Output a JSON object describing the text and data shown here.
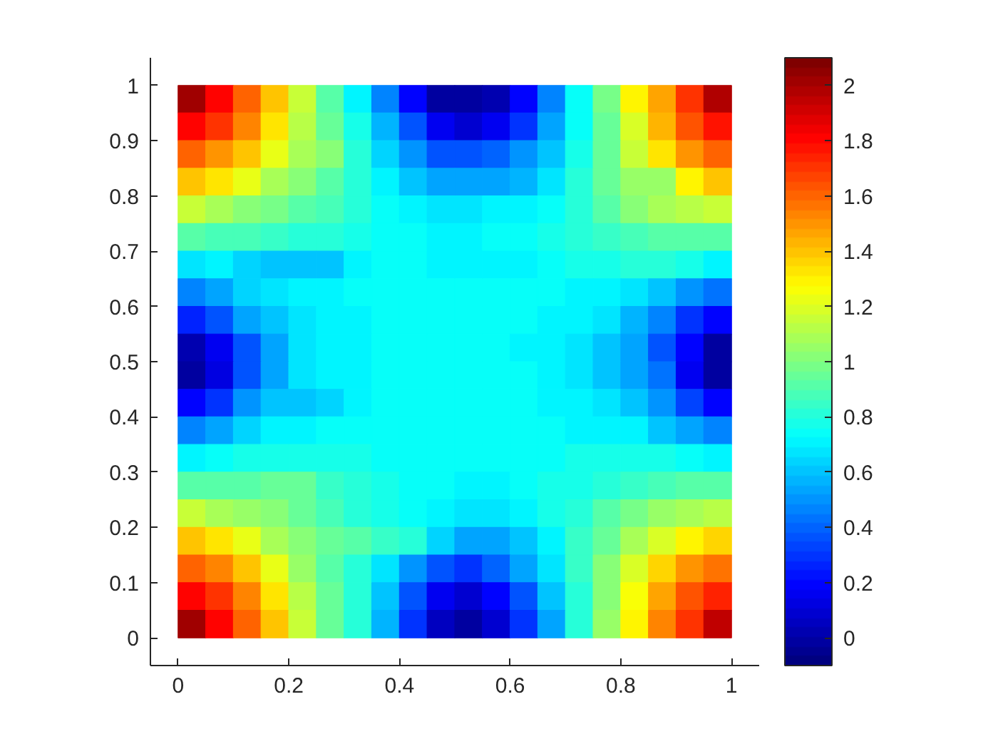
{
  "chart_data": {
    "type": "heatmap",
    "x": [
      0.025,
      0.075,
      0.125,
      0.175,
      0.225,
      0.275,
      0.325,
      0.375,
      0.425,
      0.475,
      0.525,
      0.575,
      0.625,
      0.675,
      0.725,
      0.775,
      0.825,
      0.875,
      0.925,
      0.975
    ],
    "y": [
      0.975,
      0.925,
      0.875,
      0.825,
      0.775,
      0.725,
      0.675,
      0.625,
      0.575,
      0.525,
      0.475,
      0.425,
      0.375,
      0.325,
      0.275,
      0.225,
      0.175,
      0.125,
      0.075,
      0.025
    ],
    "cells": [
      [
        2.0,
        1.8,
        1.6,
        1.38,
        1.15,
        0.92,
        0.72,
        0.48,
        0.2,
        0.0,
        -0.02,
        0.02,
        0.18,
        0.45,
        0.75,
        0.98,
        1.3,
        1.48,
        1.72,
        1.98
      ],
      [
        1.8,
        1.7,
        1.52,
        1.32,
        1.12,
        0.95,
        0.78,
        0.58,
        0.35,
        0.15,
        0.1,
        0.15,
        0.3,
        0.52,
        0.75,
        0.95,
        1.2,
        1.42,
        1.62,
        1.78
      ],
      [
        1.6,
        1.5,
        1.38,
        1.22,
        1.1,
        1.02,
        0.82,
        0.65,
        0.5,
        0.35,
        0.35,
        0.4,
        0.5,
        0.62,
        0.78,
        0.95,
        1.15,
        1.32,
        1.5,
        1.6
      ],
      [
        1.38,
        1.32,
        1.22,
        1.1,
        1.0,
        0.92,
        0.82,
        0.72,
        0.62,
        0.55,
        0.55,
        0.55,
        0.58,
        0.68,
        0.82,
        0.95,
        1.05,
        1.05,
        1.28,
        1.38
      ],
      [
        1.15,
        1.1,
        1.02,
        0.97,
        0.92,
        0.87,
        0.8,
        0.75,
        0.72,
        0.68,
        0.68,
        0.7,
        0.72,
        0.75,
        0.82,
        0.9,
        1.0,
        1.08,
        1.12,
        1.15
      ],
      [
        0.9,
        0.88,
        0.87,
        0.85,
        0.82,
        0.8,
        0.77,
        0.75,
        0.73,
        0.72,
        0.72,
        0.73,
        0.73,
        0.76,
        0.8,
        0.84,
        0.88,
        0.9,
        0.9,
        0.9
      ],
      [
        0.68,
        0.7,
        0.65,
        0.6,
        0.6,
        0.62,
        0.7,
        0.73,
        0.73,
        0.72,
        0.72,
        0.72,
        0.72,
        0.73,
        0.76,
        0.78,
        0.8,
        0.8,
        0.78,
        0.7
      ],
      [
        0.45,
        0.55,
        0.65,
        0.68,
        0.7,
        0.72,
        0.73,
        0.73,
        0.73,
        0.73,
        0.73,
        0.73,
        0.73,
        0.73,
        0.72,
        0.7,
        0.66,
        0.6,
        0.5,
        0.42
      ],
      [
        0.25,
        0.35,
        0.52,
        0.62,
        0.68,
        0.7,
        0.72,
        0.73,
        0.73,
        0.73,
        0.73,
        0.73,
        0.73,
        0.72,
        0.7,
        0.66,
        0.58,
        0.45,
        0.3,
        0.2
      ],
      [
        0.02,
        0.15,
        0.38,
        0.55,
        0.66,
        0.7,
        0.72,
        0.73,
        0.73,
        0.73,
        0.73,
        0.73,
        0.72,
        0.7,
        0.68,
        0.62,
        0.52,
        0.38,
        0.18,
        0.0
      ],
      [
        0.0,
        0.12,
        0.35,
        0.55,
        0.67,
        0.7,
        0.72,
        0.74,
        0.75,
        0.75,
        0.74,
        0.74,
        0.73,
        0.72,
        0.68,
        0.6,
        0.55,
        0.42,
        0.15,
        -0.02
      ],
      [
        0.2,
        0.3,
        0.5,
        0.6,
        0.62,
        0.65,
        0.7,
        0.73,
        0.75,
        0.75,
        0.74,
        0.74,
        0.73,
        0.72,
        0.7,
        0.68,
        0.62,
        0.5,
        0.32,
        0.2
      ],
      [
        0.45,
        0.55,
        0.65,
        0.7,
        0.72,
        0.73,
        0.74,
        0.75,
        0.75,
        0.75,
        0.74,
        0.74,
        0.74,
        0.73,
        0.72,
        0.72,
        0.7,
        0.62,
        0.52,
        0.45
      ],
      [
        0.7,
        0.75,
        0.78,
        0.78,
        0.78,
        0.77,
        0.76,
        0.75,
        0.75,
        0.75,
        0.73,
        0.73,
        0.74,
        0.75,
        0.76,
        0.77,
        0.77,
        0.76,
        0.74,
        0.7
      ],
      [
        0.92,
        0.92,
        0.92,
        0.95,
        0.95,
        0.85,
        0.8,
        0.77,
        0.75,
        0.75,
        0.72,
        0.72,
        0.74,
        0.76,
        0.78,
        0.82,
        0.85,
        0.88,
        0.9,
        0.9
      ],
      [
        1.15,
        1.1,
        1.05,
        1.0,
        0.95,
        0.88,
        0.82,
        0.78,
        0.75,
        0.72,
        0.66,
        0.68,
        0.72,
        0.76,
        0.82,
        0.9,
        0.98,
        1.05,
        1.1,
        1.12
      ],
      [
        1.38,
        1.32,
        1.22,
        1.1,
        1.0,
        0.95,
        0.9,
        0.85,
        0.8,
        0.65,
        0.55,
        0.55,
        0.62,
        0.72,
        0.85,
        0.95,
        1.08,
        1.2,
        1.3,
        1.35
      ],
      [
        1.6,
        1.52,
        1.4,
        1.22,
        1.05,
        0.92,
        0.8,
        0.68,
        0.5,
        0.35,
        0.3,
        0.4,
        0.52,
        0.68,
        0.85,
        1.0,
        1.18,
        1.35,
        1.5,
        1.58
      ],
      [
        1.8,
        1.7,
        1.52,
        1.32,
        1.12,
        0.95,
        0.8,
        0.62,
        0.38,
        0.15,
        0.1,
        0.2,
        0.38,
        0.6,
        0.82,
        1.02,
        1.25,
        1.45,
        1.62,
        1.75
      ],
      [
        2.0,
        1.8,
        1.6,
        1.38,
        1.15,
        0.95,
        0.8,
        0.58,
        0.3,
        0.05,
        -0.02,
        0.1,
        0.3,
        0.55,
        0.8,
        1.05,
        1.3,
        1.52,
        1.72,
        1.95
      ]
    ],
    "clim": [
      -0.1,
      2.1
    ],
    "cticks": [
      0,
      0.2,
      0.4,
      0.6,
      0.8,
      1,
      1.2,
      1.4,
      1.6,
      1.8,
      2
    ],
    "xlim": [
      -0.05,
      1.05
    ],
    "ylim": [
      -0.05,
      1.05
    ],
    "xticks": [
      0,
      0.2,
      0.4,
      0.6,
      0.8,
      1
    ],
    "yticks": [
      0,
      0.1,
      0.2,
      0.3,
      0.4,
      0.5,
      0.6,
      0.7,
      0.8,
      0.9,
      1
    ]
  }
}
